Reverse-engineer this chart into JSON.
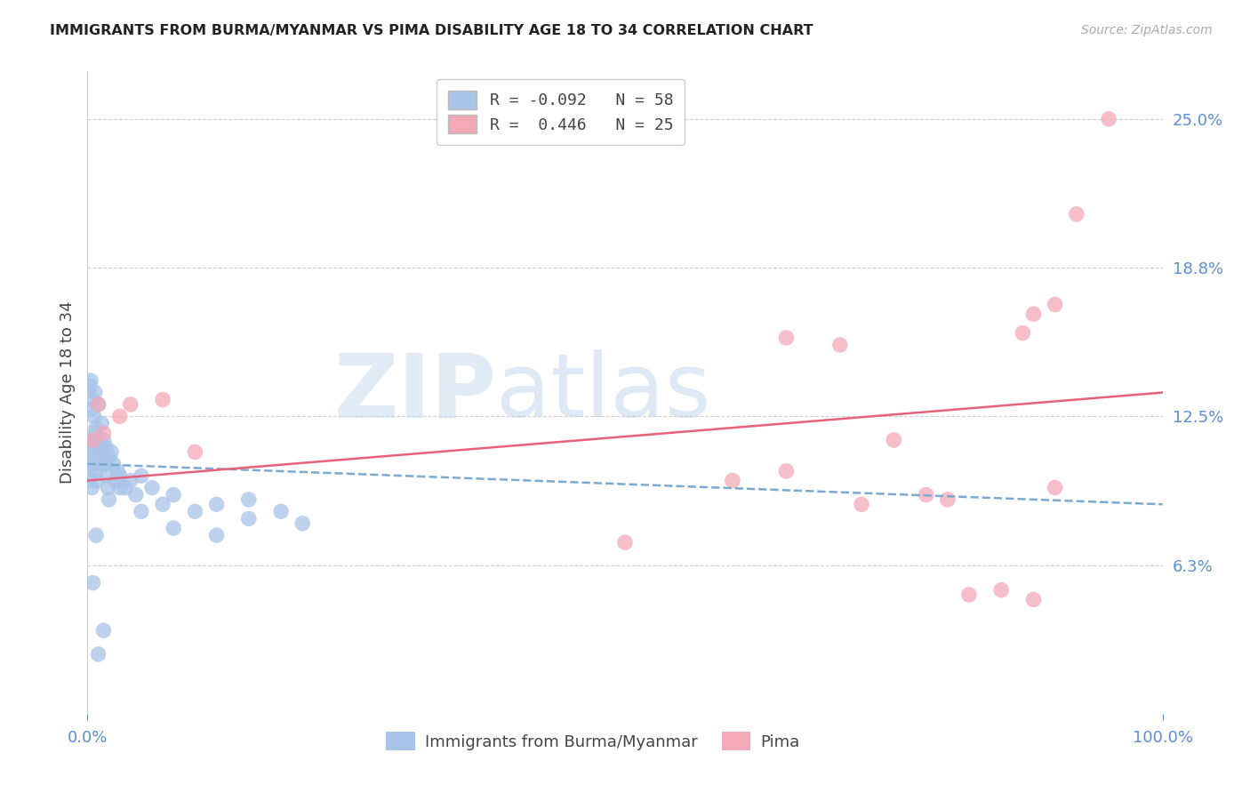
{
  "title": "IMMIGRANTS FROM BURMA/MYANMAR VS PIMA DISABILITY AGE 18 TO 34 CORRELATION CHART",
  "source": "Source: ZipAtlas.com",
  "ylabel": "Disability Age 18 to 34",
  "legend_label_blue": "Immigrants from Burma/Myanmar",
  "legend_label_pink": "Pima",
  "R_blue": -0.092,
  "N_blue": 58,
  "R_pink": 0.446,
  "N_pink": 25,
  "color_blue": "#A8C4E8",
  "color_pink": "#F4A8B8",
  "color_blue_line": "#7AAAD0",
  "color_pink_line": "#E8607A",
  "color_axis_labels": "#5B8FD5",
  "xlim": [
    0,
    100
  ],
  "ylim": [
    0,
    27
  ],
  "ytick_vals": [
    0,
    6.25,
    12.5,
    18.75,
    25.0
  ],
  "ytick_labels": [
    "",
    "6.3%",
    "12.5%",
    "18.8%",
    "25.0%"
  ],
  "xtick_vals": [
    0,
    100
  ],
  "xtick_labels": [
    "0.0%",
    "100.0%"
  ],
  "background_color": "#ffffff",
  "watermark_zip": "ZIP",
  "watermark_atlas": "atlas",
  "blue_points_x": [
    0.1,
    0.1,
    0.2,
    0.2,
    0.3,
    0.3,
    0.3,
    0.4,
    0.4,
    0.5,
    0.5,
    0.6,
    0.6,
    0.7,
    0.7,
    0.8,
    0.8,
    0.9,
    0.9,
    1.0,
    1.0,
    1.1,
    1.2,
    1.3,
    1.4,
    1.5,
    1.6,
    1.7,
    1.8,
    1.9,
    2.0,
    2.2,
    2.4,
    2.6,
    2.8,
    3.0,
    3.5,
    4.0,
    4.5,
    5.0,
    6.0,
    7.0,
    8.0,
    10.0,
    12.0,
    15.0,
    18.0,
    20.0,
    12.0,
    15.0,
    8.0,
    5.0,
    3.0,
    2.0,
    1.5,
    1.0,
    0.8,
    0.5
  ],
  "blue_points_y": [
    10.2,
    9.8,
    13.8,
    11.5,
    14.0,
    12.8,
    10.5,
    11.2,
    9.5,
    13.2,
    11.0,
    12.5,
    10.8,
    13.5,
    11.8,
    12.0,
    10.2,
    11.5,
    9.8,
    13.0,
    11.2,
    10.5,
    11.0,
    12.2,
    10.8,
    11.5,
    10.5,
    11.2,
    10.0,
    9.5,
    10.8,
    11.0,
    10.5,
    9.8,
    10.2,
    10.0,
    9.5,
    9.8,
    9.2,
    10.0,
    9.5,
    8.8,
    9.2,
    8.5,
    8.8,
    9.0,
    8.5,
    8.0,
    7.5,
    8.2,
    7.8,
    8.5,
    9.5,
    9.0,
    3.5,
    2.5,
    7.5,
    5.5
  ],
  "pink_points_x": [
    0.5,
    1.0,
    1.5,
    3.0,
    4.0,
    7.0,
    10.0,
    50.0,
    65.0,
    70.0,
    72.0,
    75.0,
    78.0,
    80.0,
    82.0,
    85.0,
    87.0,
    88.0,
    88.0,
    90.0,
    90.0,
    92.0,
    65.0,
    60.0,
    95.0
  ],
  "pink_points_y": [
    11.5,
    13.0,
    11.8,
    12.5,
    13.0,
    13.2,
    11.0,
    7.2,
    15.8,
    15.5,
    8.8,
    11.5,
    9.2,
    9.0,
    5.0,
    5.2,
    16.0,
    16.8,
    4.8,
    17.2,
    9.5,
    21.0,
    10.2,
    9.8,
    25.0
  ],
  "blue_trend_x": [
    0,
    100
  ],
  "blue_trend_y": [
    10.5,
    8.8
  ],
  "pink_trend_x": [
    0,
    100
  ],
  "pink_trend_y": [
    9.8,
    13.5
  ]
}
